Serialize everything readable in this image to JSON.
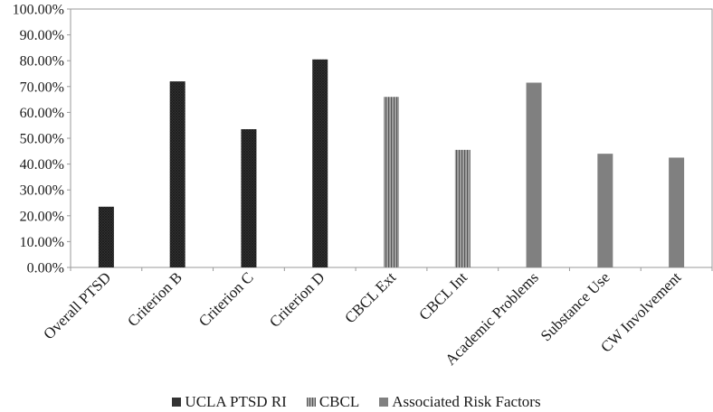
{
  "chart_data": {
    "type": "bar",
    "title": "",
    "xlabel": "",
    "ylabel": "",
    "ylim": [
      0,
      100
    ],
    "yticks": [
      "0.00%",
      "10.00%",
      "20.00%",
      "30.00%",
      "40.00%",
      "50.00%",
      "60.00%",
      "70.00%",
      "80.00%",
      "90.00%",
      "100.00%"
    ],
    "categories": [
      "Overall PTSD",
      "Criterion B",
      "Criterion C",
      "Criterion D",
      "CBCL Ext",
      "CBCL Int",
      "Academic Problems",
      "Substance Use",
      "CW Involvement"
    ],
    "series": [
      {
        "name": "UCLA PTSD RI",
        "color": "#333333",
        "pattern": "crosshatch",
        "values": [
          23.5,
          72,
          53.5,
          80.5,
          null,
          null,
          null,
          null,
          null
        ]
      },
      {
        "name": "CBCL",
        "color": "#8c8c8c",
        "pattern": "vertical-lines",
        "values": [
          null,
          null,
          null,
          null,
          66,
          45.5,
          null,
          null,
          null
        ]
      },
      {
        "name": "Associated Risk Factors",
        "color": "#808080",
        "pattern": "solid",
        "values": [
          null,
          null,
          null,
          null,
          null,
          null,
          71.5,
          44,
          42.5
        ]
      }
    ],
    "grid": false,
    "legend": "bottom"
  }
}
